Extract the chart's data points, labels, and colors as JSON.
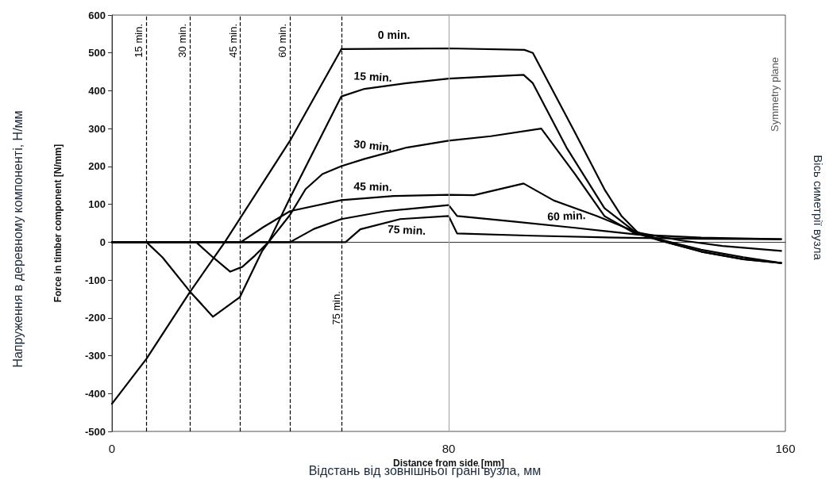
{
  "chart_data": {
    "type": "line",
    "xlabel": "Distance from side [mm]",
    "ylabel": "Force in timber component [N/mm]",
    "xlim": [
      0,
      160
    ],
    "xticks": [
      0,
      80,
      160
    ],
    "ylim": [
      -500,
      600
    ],
    "yticks": [
      -500,
      -400,
      -300,
      -200,
      -100,
      0,
      100,
      200,
      300,
      400,
      500,
      600
    ],
    "legend": false,
    "marker": "none",
    "line_style": "solid",
    "series": [
      {
        "name": "0 min.",
        "color": "#000000",
        "x": [
          0,
          8.2,
          18.5,
          26.8,
          42.3,
          54.5,
          80,
          98,
          100,
          110,
          117,
          121,
          125,
          131,
          140,
          150,
          159
        ],
        "values": [
          -427,
          -308,
          -132,
          0,
          268,
          510,
          512,
          508,
          500,
          290,
          140,
          70,
          25,
          5,
          -20,
          -40,
          -55
        ]
      },
      {
        "name": "15 min.",
        "color": "#000000",
        "x": [
          0,
          8.2,
          12,
          18.5,
          24,
          30.4,
          35.7,
          37.2,
          42.3,
          54.5,
          60,
          70,
          80,
          90,
          97.8,
          100,
          108,
          117,
          124,
          130,
          140,
          150,
          159
        ],
        "values": [
          0,
          0,
          -40,
          -130,
          -197,
          -145,
          -23,
          0,
          117,
          385,
          405,
          420,
          432,
          438,
          442,
          420,
          250,
          90,
          30,
          5,
          -25,
          -45,
          -55
        ]
      },
      {
        "name": "30 min.",
        "color": "#000000",
        "x": [
          0,
          20,
          24,
          28.1,
          31,
          34,
          37.2,
          42.3,
          46,
          50,
          54.5,
          60,
          70,
          80,
          90,
          102,
          110,
          117,
          124,
          130,
          140,
          150,
          159
        ],
        "values": [
          0,
          0,
          -40,
          -78,
          -65,
          -35,
          0,
          72,
          140,
          180,
          201,
          220,
          250,
          268,
          280,
          300,
          180,
          69,
          25,
          5,
          -25,
          -45,
          -55
        ]
      },
      {
        "name": "45 min.",
        "color": "#000000",
        "x": [
          0,
          30.6,
          36,
          42.3,
          54.5,
          67,
          80,
          86,
          97.8,
          105,
          115,
          125,
          135,
          145,
          159
        ],
        "values": [
          0,
          0,
          40,
          82,
          111,
          122,
          125,
          124,
          155,
          110,
          70,
          25,
          5,
          -10,
          -23
        ]
      },
      {
        "name": "60 min.",
        "color": "#000000",
        "x": [
          0,
          42.3,
          48,
          54.5,
          65,
          80,
          82,
          95,
          110,
          125,
          140,
          159
        ],
        "values": [
          0,
          0,
          35,
          61,
          82,
          98,
          69,
          55,
          38,
          20,
          12,
          8
        ]
      },
      {
        "name": "75 min.",
        "color": "#000000",
        "x": [
          0,
          55.5,
          59,
          68.5,
          80,
          82,
          100,
          120,
          140,
          159
        ],
        "values": [
          0,
          0,
          34,
          61,
          69,
          23,
          17,
          12,
          9,
          8
        ]
      }
    ],
    "ref_lines": [
      {
        "axis": "x",
        "value": 80,
        "color": "#aaaaaa",
        "line_style": "solid"
      },
      {
        "axis": "x",
        "value": 8.2,
        "label": "15 min.",
        "line_style": "dashed",
        "color": "#000000"
      },
      {
        "axis": "x",
        "value": 18.5,
        "label": "30 min.",
        "line_style": "dashed",
        "color": "#000000"
      },
      {
        "axis": "x",
        "value": 30.5,
        "label": "45 min.",
        "line_style": "dashed",
        "color": "#000000"
      },
      {
        "axis": "x",
        "value": 42.3,
        "label": "60 min.",
        "line_style": "dashed",
        "color": "#000000"
      },
      {
        "axis": "x",
        "value": 54.5,
        "label": "75 min.",
        "line_style": "dashed",
        "color": "#000000"
      }
    ],
    "annotations": [
      "Symmetry plane",
      "Напруження в деревному компоненті, Н/мм",
      "Відстань від зовнішньої грані вузла, мм",
      "Вісь симетрії вузла"
    ]
  }
}
